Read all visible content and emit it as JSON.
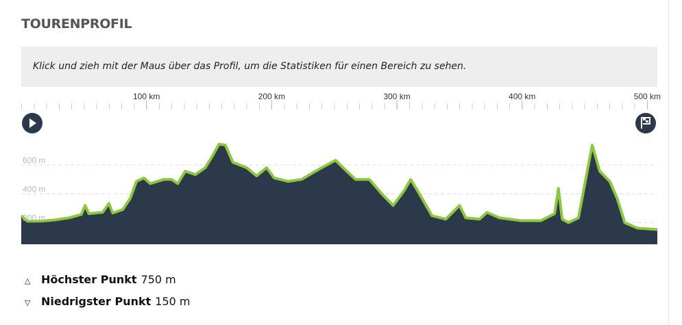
{
  "header": {
    "title": "TOURENPROFIL"
  },
  "hint": "Klick und zieh mit der Maus über das Profil, um die Statistiken für einen Bereich zu sehen.",
  "chart_data": {
    "type": "area",
    "x": [
      0,
      5,
      16,
      27,
      38,
      48,
      51,
      54,
      65,
      70,
      73,
      81,
      87,
      92,
      98,
      103,
      114,
      120,
      125,
      131,
      139,
      147,
      152,
      158,
      163,
      169,
      180,
      188,
      196,
      202,
      213,
      224,
      235,
      240,
      251,
      257,
      267,
      278,
      289,
      297,
      306,
      311,
      317,
      328,
      339,
      350,
      355,
      366,
      372,
      382,
      399,
      415,
      426,
      429,
      432,
      437,
      445,
      451,
      456,
      462,
      470,
      476,
      482,
      492,
      508
    ],
    "values": [
      248,
      210,
      210,
      219,
      233,
      257,
      319,
      262,
      271,
      333,
      267,
      290,
      367,
      486,
      510,
      471,
      500,
      500,
      471,
      557,
      533,
      581,
      652,
      745,
      738,
      619,
      581,
      524,
      581,
      510,
      486,
      500,
      557,
      581,
      633,
      581,
      500,
      500,
      390,
      319,
      424,
      500,
      414,
      248,
      224,
      319,
      233,
      224,
      271,
      233,
      214,
      214,
      262,
      438,
      224,
      200,
      233,
      510,
      738,
      557,
      486,
      367,
      200,
      162,
      152
    ],
    "color": "#8dc63f",
    "fill": "#2c394b",
    "xlim": [
      0,
      508
    ],
    "xticks": [
      {
        "value": 100,
        "label": "100 km"
      },
      {
        "value": 200,
        "label": "200 km"
      },
      {
        "value": 300,
        "label": "300 km"
      },
      {
        "value": 400,
        "label": "400 km"
      },
      {
        "value": 500,
        "label": "500 km"
      }
    ],
    "ylim": [
      50,
      800
    ],
    "yticks": [
      {
        "value": 200,
        "label": "200 m"
      },
      {
        "value": 400,
        "label": "400 m"
      },
      {
        "value": 600,
        "label": "600 m"
      }
    ],
    "grid": true
  },
  "stats": [
    {
      "label": "Höchster Punkt",
      "value": "750 m"
    },
    {
      "label": "Niedrigster Punkt",
      "value": "150 m"
    }
  ]
}
